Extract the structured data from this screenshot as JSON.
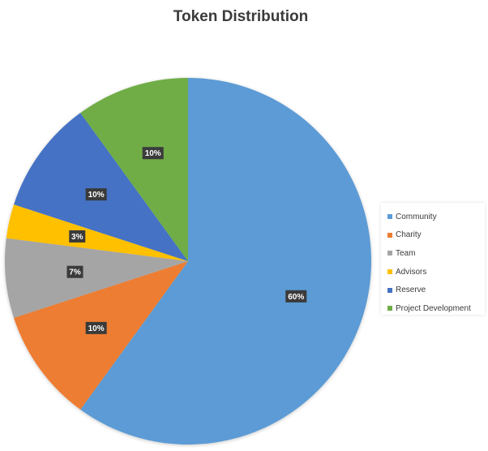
{
  "chart_data": {
    "type": "pie",
    "title": "Token Distribution",
    "slices": [
      {
        "name": "Community",
        "value": 60,
        "label": "60%",
        "color": "#5B9BD5"
      },
      {
        "name": "Charity",
        "value": 10,
        "label": "10%",
        "color": "#ED7D31"
      },
      {
        "name": "Team",
        "value": 7,
        "label": "7%",
        "color": "#A5A5A5"
      },
      {
        "name": "Advisors",
        "value": 3,
        "label": "3%",
        "color": "#FFC000"
      },
      {
        "name": "Reserve",
        "value": 10,
        "label": "10%",
        "color": "#4472C4"
      },
      {
        "name": "Project Development",
        "value": 10,
        "label": "10%",
        "color": "#70AD47"
      }
    ],
    "legend_position": "right"
  }
}
